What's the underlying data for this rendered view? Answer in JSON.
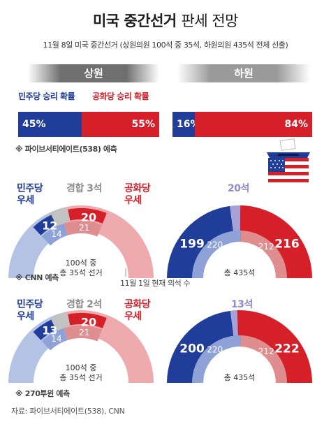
{
  "title": {
    "bold": "미국 중간선거",
    "light": "판세 전망"
  },
  "subtitle": "11월 8일 미국 중간선거 (상원의원 100석 중 35석, 하원의원 435석 전체 선출)",
  "sections": {
    "senate": "상원",
    "house": "하원"
  },
  "probability": {
    "dem_label": "민주당 승리 확률",
    "rep_label": "공화당 승리 확률",
    "source": "※ 파이브서티에이트(538) 예측"
  },
  "labels": {
    "dem_lead": [
      "민주당",
      "우세"
    ],
    "rep_lead": [
      "공화당",
      "우세"
    ],
    "tossup": "경합",
    "seat_unit": "석",
    "current_seats": "11월 1일 현재 의석 수"
  },
  "colors": {
    "dem": "#1f3d99",
    "dem_light": "#b4c2e6",
    "dem_mid": "#8ea2d8",
    "rep": "#d5202a",
    "rep_light": "#eeaaad",
    "rep_mid": "#e08d90",
    "tossup": "#c2c2c2",
    "tossup_lav": "#a6a2d8",
    "icon": "flag-ballot-box-icon"
  },
  "chart_data": [
    {
      "type": "bar",
      "chamber": "상원",
      "categories": [
        "민주당",
        "공화당"
      ],
      "values": [
        45,
        55
      ],
      "labels": [
        "45%",
        "55%"
      ]
    },
    {
      "type": "bar",
      "chamber": "하원",
      "categories": [
        "민주당",
        "공화당"
      ],
      "values": [
        16,
        84
      ],
      "labels": [
        "16%",
        "84%"
      ]
    },
    {
      "type": "pie",
      "chamber": "상원",
      "forecaster": "※ CNN 예측",
      "center_text": [
        "100석 중",
        "총 35석 선거"
      ],
      "forecast": {
        "dem": 12,
        "tossup": 3,
        "rep": 20
      },
      "current": {
        "dem": 14,
        "rep": 21
      }
    },
    {
      "type": "pie",
      "chamber": "하원",
      "forecaster": "※ CNN 예측",
      "center_text": [
        "총 435석"
      ],
      "forecast": {
        "dem": 199,
        "tossup": 20,
        "rep": 216
      },
      "current": {
        "dem": 220,
        "rep": 212
      }
    },
    {
      "type": "pie",
      "chamber": "상원",
      "forecaster": "※ 270투윈 예측",
      "center_text": [
        "100석 중",
        "총 35석 선거"
      ],
      "forecast": {
        "dem": 13,
        "tossup": 2,
        "rep": 20
      },
      "current": {
        "dem": 14,
        "rep": 21
      }
    },
    {
      "type": "pie",
      "chamber": "하원",
      "forecaster": "※ 270투윈 예측",
      "center_text": [
        "총 435석"
      ],
      "forecast": {
        "dem": 200,
        "tossup": 13,
        "rep": 222
      },
      "current": {
        "dem": 220,
        "rep": 212
      }
    }
  ],
  "source": "자료: 파이브서티에이트(538), CNN"
}
